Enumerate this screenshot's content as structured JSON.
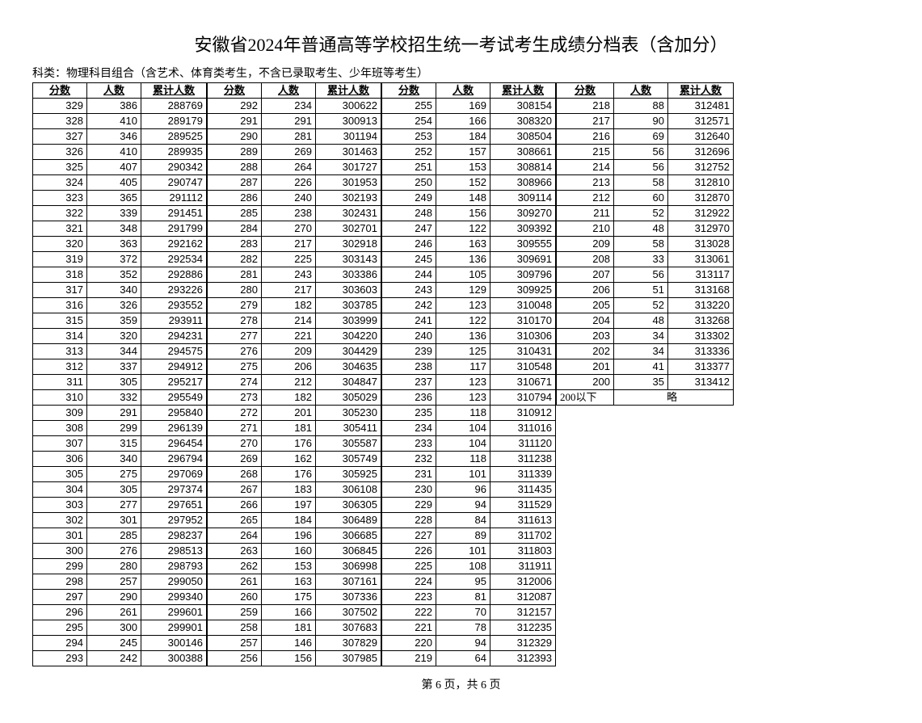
{
  "title": "安徽省2024年普通高等学校招生统一考试考生成绩分档表（含加分）",
  "subject": "科类：物理科目组合（含艺术、体育类考生，不含已录取考生、少年班等考生）",
  "headers": {
    "score": "分数",
    "count": "人数",
    "cum": "累计人数"
  },
  "footer": "第 6 页，共 6 页",
  "below200": "200以下",
  "omit": "略",
  "columns": [
    {
      "rows": [
        {
          "s": 329,
          "c": 386,
          "m": 288769
        },
        {
          "s": 328,
          "c": 410,
          "m": 289179
        },
        {
          "s": 327,
          "c": 346,
          "m": 289525
        },
        {
          "s": 326,
          "c": 410,
          "m": 289935
        },
        {
          "s": 325,
          "c": 407,
          "m": 290342
        },
        {
          "s": 324,
          "c": 405,
          "m": 290747
        },
        {
          "s": 323,
          "c": 365,
          "m": 291112
        },
        {
          "s": 322,
          "c": 339,
          "m": 291451
        },
        {
          "s": 321,
          "c": 348,
          "m": 291799
        },
        {
          "s": 320,
          "c": 363,
          "m": 292162
        },
        {
          "s": 319,
          "c": 372,
          "m": 292534
        },
        {
          "s": 318,
          "c": 352,
          "m": 292886
        },
        {
          "s": 317,
          "c": 340,
          "m": 293226
        },
        {
          "s": 316,
          "c": 326,
          "m": 293552
        },
        {
          "s": 315,
          "c": 359,
          "m": 293911
        },
        {
          "s": 314,
          "c": 320,
          "m": 294231
        },
        {
          "s": 313,
          "c": 344,
          "m": 294575
        },
        {
          "s": 312,
          "c": 337,
          "m": 294912
        },
        {
          "s": 311,
          "c": 305,
          "m": 295217
        },
        {
          "s": 310,
          "c": 332,
          "m": 295549
        },
        {
          "s": 309,
          "c": 291,
          "m": 295840
        },
        {
          "s": 308,
          "c": 299,
          "m": 296139
        },
        {
          "s": 307,
          "c": 315,
          "m": 296454
        },
        {
          "s": 306,
          "c": 340,
          "m": 296794
        },
        {
          "s": 305,
          "c": 275,
          "m": 297069
        },
        {
          "s": 304,
          "c": 305,
          "m": 297374
        },
        {
          "s": 303,
          "c": 277,
          "m": 297651
        },
        {
          "s": 302,
          "c": 301,
          "m": 297952
        },
        {
          "s": 301,
          "c": 285,
          "m": 298237
        },
        {
          "s": 300,
          "c": 276,
          "m": 298513
        },
        {
          "s": 299,
          "c": 280,
          "m": 298793
        },
        {
          "s": 298,
          "c": 257,
          "m": 299050
        },
        {
          "s": 297,
          "c": 290,
          "m": 299340
        },
        {
          "s": 296,
          "c": 261,
          "m": 299601
        },
        {
          "s": 295,
          "c": 300,
          "m": 299901
        },
        {
          "s": 294,
          "c": 245,
          "m": 300146
        },
        {
          "s": 293,
          "c": 242,
          "m": 300388
        }
      ]
    },
    {
      "rows": [
        {
          "s": 292,
          "c": 234,
          "m": 300622
        },
        {
          "s": 291,
          "c": 291,
          "m": 300913
        },
        {
          "s": 290,
          "c": 281,
          "m": 301194
        },
        {
          "s": 289,
          "c": 269,
          "m": 301463
        },
        {
          "s": 288,
          "c": 264,
          "m": 301727
        },
        {
          "s": 287,
          "c": 226,
          "m": 301953
        },
        {
          "s": 286,
          "c": 240,
          "m": 302193
        },
        {
          "s": 285,
          "c": 238,
          "m": 302431
        },
        {
          "s": 284,
          "c": 270,
          "m": 302701
        },
        {
          "s": 283,
          "c": 217,
          "m": 302918
        },
        {
          "s": 282,
          "c": 225,
          "m": 303143
        },
        {
          "s": 281,
          "c": 243,
          "m": 303386
        },
        {
          "s": 280,
          "c": 217,
          "m": 303603
        },
        {
          "s": 279,
          "c": 182,
          "m": 303785
        },
        {
          "s": 278,
          "c": 214,
          "m": 303999
        },
        {
          "s": 277,
          "c": 221,
          "m": 304220
        },
        {
          "s": 276,
          "c": 209,
          "m": 304429
        },
        {
          "s": 275,
          "c": 206,
          "m": 304635
        },
        {
          "s": 274,
          "c": 212,
          "m": 304847
        },
        {
          "s": 273,
          "c": 182,
          "m": 305029
        },
        {
          "s": 272,
          "c": 201,
          "m": 305230
        },
        {
          "s": 271,
          "c": 181,
          "m": 305411
        },
        {
          "s": 270,
          "c": 176,
          "m": 305587
        },
        {
          "s": 269,
          "c": 162,
          "m": 305749
        },
        {
          "s": 268,
          "c": 176,
          "m": 305925
        },
        {
          "s": 267,
          "c": 183,
          "m": 306108
        },
        {
          "s": 266,
          "c": 197,
          "m": 306305
        },
        {
          "s": 265,
          "c": 184,
          "m": 306489
        },
        {
          "s": 264,
          "c": 196,
          "m": 306685
        },
        {
          "s": 263,
          "c": 160,
          "m": 306845
        },
        {
          "s": 262,
          "c": 153,
          "m": 306998
        },
        {
          "s": 261,
          "c": 163,
          "m": 307161
        },
        {
          "s": 260,
          "c": 175,
          "m": 307336
        },
        {
          "s": 259,
          "c": 166,
          "m": 307502
        },
        {
          "s": 258,
          "c": 181,
          "m": 307683
        },
        {
          "s": 257,
          "c": 146,
          "m": 307829
        },
        {
          "s": 256,
          "c": 156,
          "m": 307985
        }
      ]
    },
    {
      "rows": [
        {
          "s": 255,
          "c": 169,
          "m": 308154
        },
        {
          "s": 254,
          "c": 166,
          "m": 308320
        },
        {
          "s": 253,
          "c": 184,
          "m": 308504
        },
        {
          "s": 252,
          "c": 157,
          "m": 308661
        },
        {
          "s": 251,
          "c": 153,
          "m": 308814
        },
        {
          "s": 250,
          "c": 152,
          "m": 308966
        },
        {
          "s": 249,
          "c": 148,
          "m": 309114
        },
        {
          "s": 248,
          "c": 156,
          "m": 309270
        },
        {
          "s": 247,
          "c": 122,
          "m": 309392
        },
        {
          "s": 246,
          "c": 163,
          "m": 309555
        },
        {
          "s": 245,
          "c": 136,
          "m": 309691
        },
        {
          "s": 244,
          "c": 105,
          "m": 309796
        },
        {
          "s": 243,
          "c": 129,
          "m": 309925
        },
        {
          "s": 242,
          "c": 123,
          "m": 310048
        },
        {
          "s": 241,
          "c": 122,
          "m": 310170
        },
        {
          "s": 240,
          "c": 136,
          "m": 310306
        },
        {
          "s": 239,
          "c": 125,
          "m": 310431
        },
        {
          "s": 238,
          "c": 117,
          "m": 310548
        },
        {
          "s": 237,
          "c": 123,
          "m": 310671
        },
        {
          "s": 236,
          "c": 123,
          "m": 310794
        },
        {
          "s": 235,
          "c": 118,
          "m": 310912
        },
        {
          "s": 234,
          "c": 104,
          "m": 311016
        },
        {
          "s": 233,
          "c": 104,
          "m": 311120
        },
        {
          "s": 232,
          "c": 118,
          "m": 311238
        },
        {
          "s": 231,
          "c": 101,
          "m": 311339
        },
        {
          "s": 230,
          "c": 96,
          "m": 311435
        },
        {
          "s": 229,
          "c": 94,
          "m": 311529
        },
        {
          "s": 228,
          "c": 84,
          "m": 311613
        },
        {
          "s": 227,
          "c": 89,
          "m": 311702
        },
        {
          "s": 226,
          "c": 101,
          "m": 311803
        },
        {
          "s": 225,
          "c": 108,
          "m": 311911
        },
        {
          "s": 224,
          "c": 95,
          "m": 312006
        },
        {
          "s": 223,
          "c": 81,
          "m": 312087
        },
        {
          "s": 222,
          "c": 70,
          "m": 312157
        },
        {
          "s": 221,
          "c": 78,
          "m": 312235
        },
        {
          "s": 220,
          "c": 94,
          "m": 312329
        },
        {
          "s": 219,
          "c": 64,
          "m": 312393
        }
      ]
    },
    {
      "rows": [
        {
          "s": 218,
          "c": 88,
          "m": 312481
        },
        {
          "s": 217,
          "c": 90,
          "m": 312571
        },
        {
          "s": 216,
          "c": 69,
          "m": 312640
        },
        {
          "s": 215,
          "c": 56,
          "m": 312696
        },
        {
          "s": 214,
          "c": 56,
          "m": 312752
        },
        {
          "s": 213,
          "c": 58,
          "m": 312810
        },
        {
          "s": 212,
          "c": 60,
          "m": 312870
        },
        {
          "s": 211,
          "c": 52,
          "m": 312922
        },
        {
          "s": 210,
          "c": 48,
          "m": 312970
        },
        {
          "s": 209,
          "c": 58,
          "m": 313028
        },
        {
          "s": 208,
          "c": 33,
          "m": 313061
        },
        {
          "s": 207,
          "c": 56,
          "m": 313117
        },
        {
          "s": 206,
          "c": 51,
          "m": 313168
        },
        {
          "s": 205,
          "c": 52,
          "m": 313220
        },
        {
          "s": 204,
          "c": 48,
          "m": 313268
        },
        {
          "s": 203,
          "c": 34,
          "m": 313302
        },
        {
          "s": 202,
          "c": 34,
          "m": 313336
        },
        {
          "s": 201,
          "c": 41,
          "m": 313377
        },
        {
          "s": 200,
          "c": 35,
          "m": 313412
        }
      ],
      "tail": true
    }
  ]
}
